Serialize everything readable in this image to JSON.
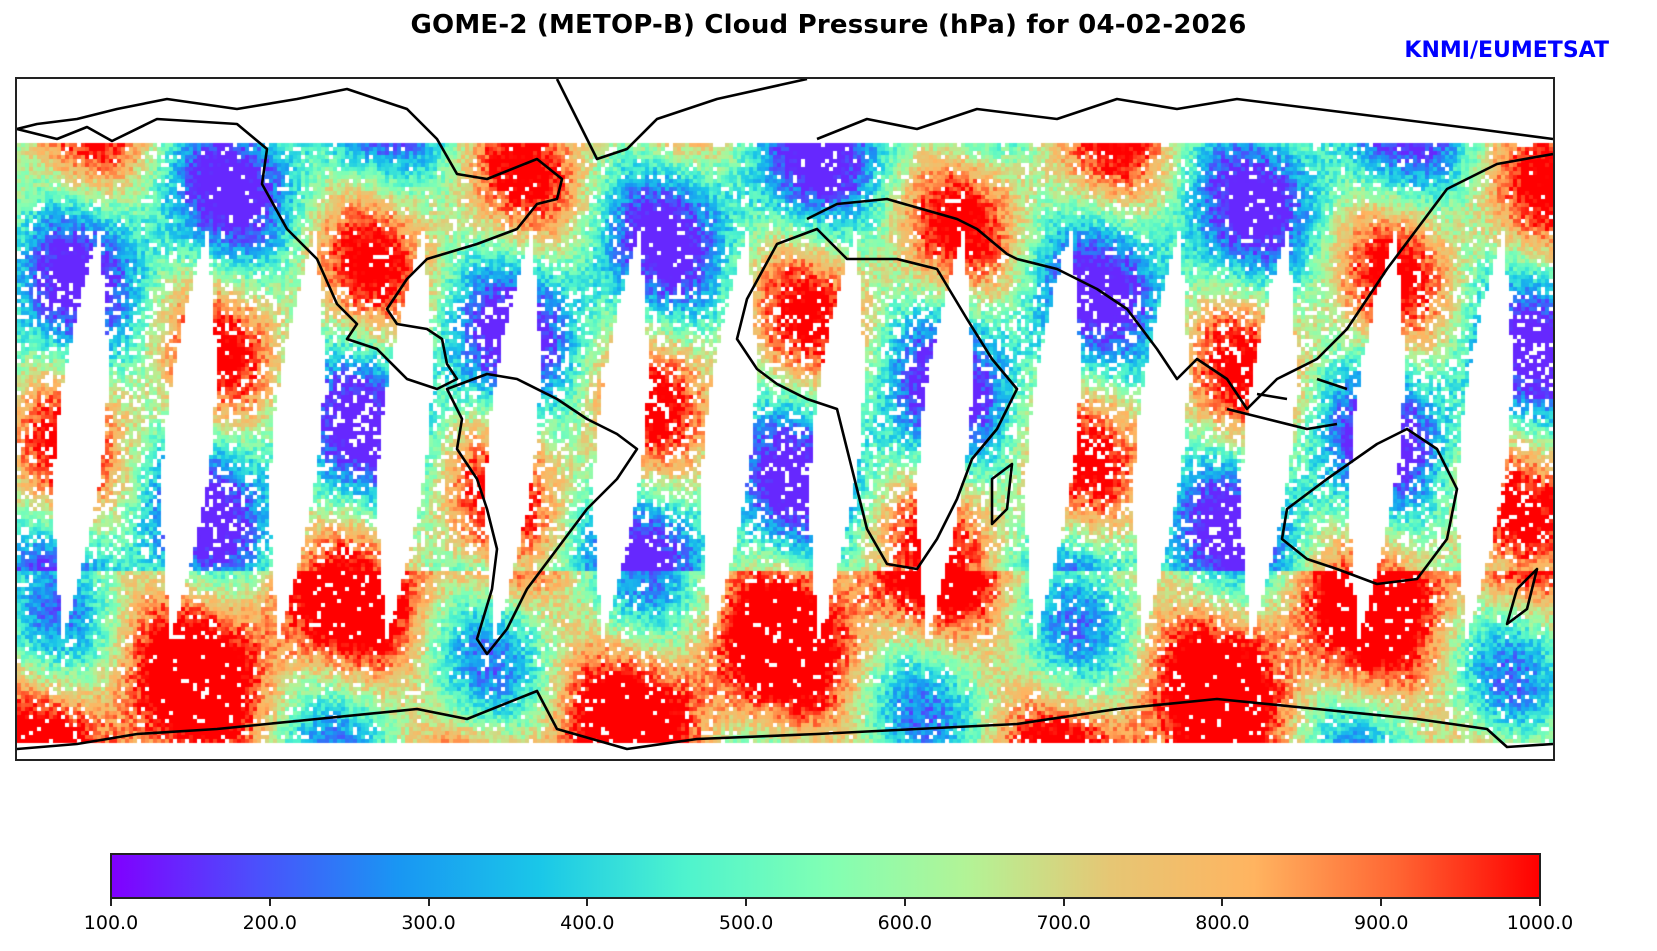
{
  "title": "GOME-2 (METOP-B) Cloud Pressure (hPa) for 04-02-2026",
  "credit": "KNMI/EUMETSAT",
  "map": {
    "projection": "equirectangular",
    "variable": "Cloud Pressure",
    "units": "hPa",
    "swath_gaps": 14,
    "coastline_color": "#000000",
    "missing_color": "#ffffff"
  },
  "colorbar": {
    "colormap": "rainbow",
    "min": 100.0,
    "max": 1000.0,
    "stops": [
      "#8000ff",
      "#4c4ffc",
      "#1996f3",
      "#1ac7e8",
      "#4df3ce",
      "#80ffb4",
      "#b3f396",
      "#e6c674",
      "#ffb460",
      "#ff6633",
      "#ff0000"
    ],
    "ticks": [
      "100.0",
      "200.0",
      "300.0",
      "400.0",
      "500.0",
      "600.0",
      "700.0",
      "800.0",
      "900.0",
      "1000.0"
    ]
  }
}
